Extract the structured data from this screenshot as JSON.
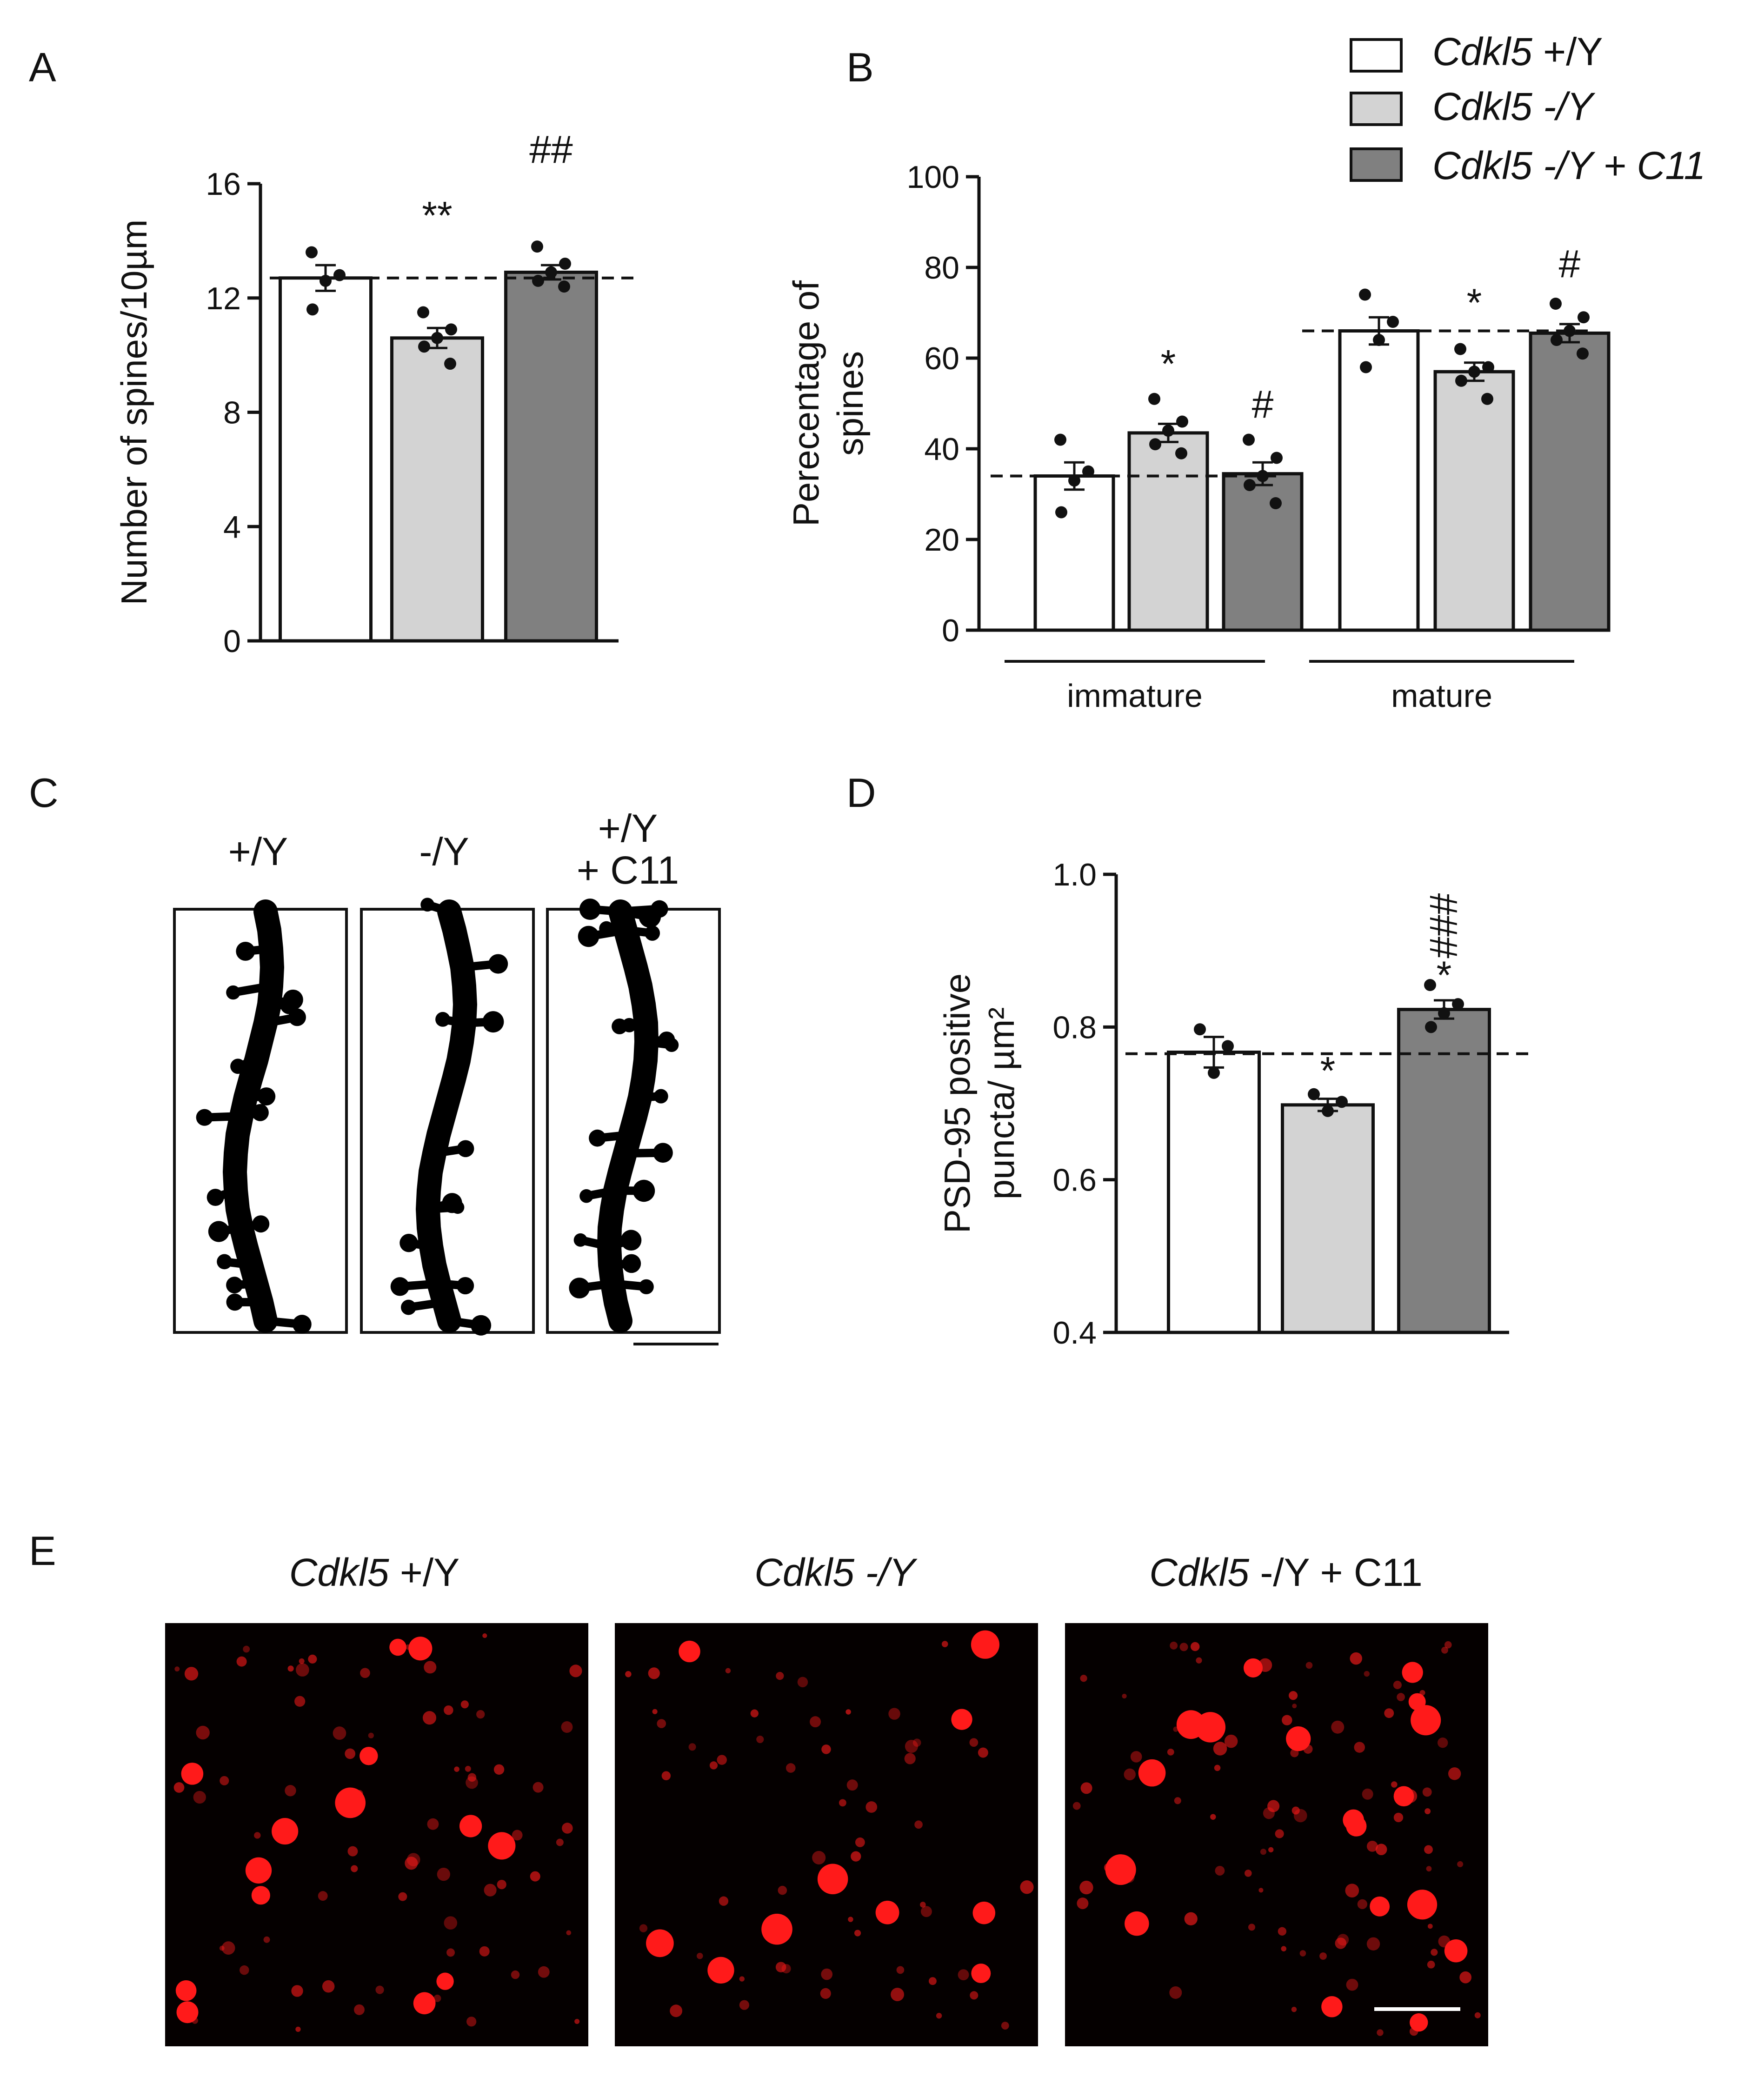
{
  "panels": {
    "a": "A",
    "b": "B",
    "c": "C",
    "d": "D",
    "e": "E"
  },
  "colors": {
    "wt": "#ffffff",
    "ko": "#d3d3d3",
    "ko_c11": "#808080",
    "puncta": "#ff1a1a"
  },
  "legend": [
    {
      "gene": "Cdkl5",
      "genotype": " +/Y",
      "color": "#ffffff"
    },
    {
      "gene": "Cdkl5",
      "genotype": " -/Y",
      "color": "#d3d3d3"
    },
    {
      "gene": "Cdkl5",
      "genotype": " -/Y + C11",
      "color": "#808080"
    }
  ],
  "chart_data": [
    {
      "id": "A",
      "type": "bar",
      "ylabel": "Number of spines/10µm",
      "ylim": [
        0,
        16
      ],
      "yticks": [
        "0",
        "4",
        "8",
        "12",
        "16"
      ],
      "series": [
        {
          "values": [
            12.7
          ],
          "color": "#ffffff",
          "err": 0.45,
          "points": [
            13.6,
            12.8,
            12.6,
            11.6
          ],
          "sig": ""
        },
        {
          "values": [
            10.6
          ],
          "color": "#d3d3d3",
          "err": 0.35,
          "points": [
            11.5,
            10.9,
            10.6,
            10.3,
            9.7
          ],
          "sig": "**"
        },
        {
          "values": [
            12.9
          ],
          "color": "#808080",
          "err": 0.25,
          "points": [
            13.8,
            13.2,
            12.9,
            12.6,
            12.4
          ],
          "sig": "##"
        }
      ],
      "reference_line": 12.7
    },
    {
      "id": "B",
      "type": "bar",
      "ylabel": [
        "Perecentage of",
        "spines"
      ],
      "ylim": [
        0,
        100
      ],
      "yticks": [
        "0",
        "20",
        "40",
        "60",
        "80",
        "100"
      ],
      "groups": [
        "immature",
        "mature"
      ],
      "series": [
        {
          "values": [
            34,
            66
          ],
          "color": "#ffffff",
          "err": [
            3,
            3
          ],
          "points": [
            [
              42,
              35,
              33,
              26
            ],
            [
              74,
              68,
              64,
              58
            ]
          ],
          "sig": [
            "",
            ""
          ]
        },
        {
          "values": [
            43.5,
            57
          ],
          "color": "#d3d3d3",
          "err": [
            2,
            2
          ],
          "points": [
            [
              51,
              46,
              44,
              41,
              39
            ],
            [
              62,
              58,
              57,
              55,
              51
            ]
          ],
          "sig": [
            "*",
            "*"
          ]
        },
        {
          "values": [
            34.5,
            65.5
          ],
          "color": "#808080",
          "err": [
            2.5,
            2
          ],
          "points": [
            [
              42,
              38,
              34,
              32,
              28
            ],
            [
              72,
              69,
              66,
              64,
              61
            ]
          ],
          "sig": [
            "#",
            "#"
          ]
        }
      ],
      "reference_lines": [
        34,
        66
      ]
    },
    {
      "id": "D",
      "type": "bar",
      "ylabel": [
        "PSD-95 positive",
        "puncta/ µm²"
      ],
      "ylim": [
        0.4,
        1.0
      ],
      "yticks": [
        "0.4",
        "0.6",
        "0.8",
        "1.0"
      ],
      "series": [
        {
          "values": [
            0.767
          ],
          "color": "#ffffff",
          "err": 0.02,
          "points": [
            0.797,
            0.775,
            0.74
          ],
          "sig": ""
        },
        {
          "values": [
            0.698
          ],
          "color": "#d3d3d3",
          "err": 0.008,
          "points": [
            0.712,
            0.702,
            0.69
          ],
          "sig": "*"
        },
        {
          "values": [
            0.823
          ],
          "color": "#808080",
          "err": 0.012,
          "points": [
            0.855,
            0.83,
            0.818,
            0.8
          ],
          "sig": "*",
          "sig2": "###"
        }
      ],
      "reference_line": 0.765
    }
  ],
  "panel_c": {
    "labels": [
      "+/Y",
      "-/Y",
      "+/Y",
      "+ C11"
    ]
  },
  "panel_e": {
    "labels": [
      {
        "gene": "Cdkl5",
        "genotype": " +/Y"
      },
      {
        "gene": "Cdkl5",
        "genotype": " -/Y"
      },
      {
        "gene": "Cdkl5",
        "genotype": " -/Y + C11"
      }
    ]
  }
}
